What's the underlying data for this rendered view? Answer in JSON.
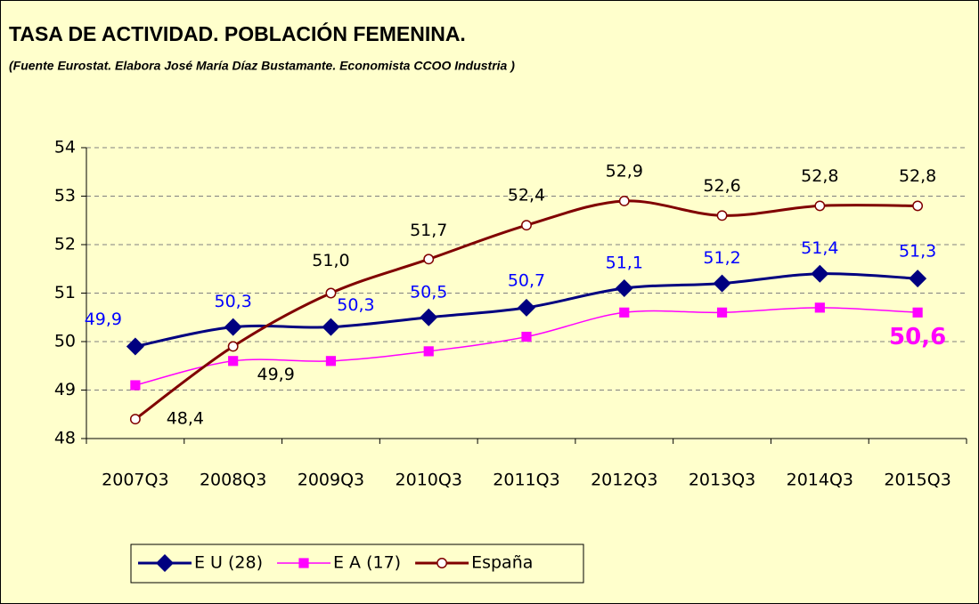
{
  "chart_data": {
    "type": "line",
    "title": "TASA DE ACTIVIDAD. POBLACIÓN FEMENINA.",
    "subtitle": "(Fuente Eurostat. Elabora José María Díaz Bustamante. Economista CCOO Industria )",
    "categories": [
      "2007Q3",
      "2008Q3",
      "2009Q3",
      "2010Q3",
      "2011Q3",
      "2012Q3",
      "2013Q3",
      "2014Q3",
      "2015Q3"
    ],
    "series": [
      {
        "name": "E U (28)",
        "color": "#000080",
        "marker": "diamond",
        "values": [
          49.9,
          50.3,
          50.3,
          50.5,
          50.7,
          51.1,
          51.2,
          51.4,
          51.3
        ],
        "value_labels": [
          "49,9",
          "50,3",
          "50,3",
          "50,5",
          "50,7",
          "51,1",
          "51,2",
          "51,4",
          "51,3"
        ]
      },
      {
        "name": "E A (17)",
        "color": "#ff00ff",
        "marker": "square",
        "values": [
          49.1,
          49.6,
          49.6,
          49.8,
          50.1,
          50.6,
          50.6,
          50.7,
          50.6
        ],
        "value_labels": [
          null,
          null,
          null,
          null,
          null,
          null,
          null,
          null,
          "50,6"
        ]
      },
      {
        "name": "España",
        "color": "#800000",
        "marker": "circle",
        "values": [
          48.4,
          49.9,
          51.0,
          51.7,
          52.4,
          52.9,
          52.6,
          52.8,
          52.8
        ],
        "value_labels": [
          "48,4",
          "49,9",
          "51,0",
          "51,7",
          "52,4",
          "52,9",
          "52,6",
          "52,8",
          "52,8"
        ]
      }
    ],
    "ylim": [
      48,
      54
    ],
    "yticks": [
      48,
      49,
      50,
      51,
      52,
      53,
      54
    ],
    "grid": true,
    "legend": "bottom"
  }
}
